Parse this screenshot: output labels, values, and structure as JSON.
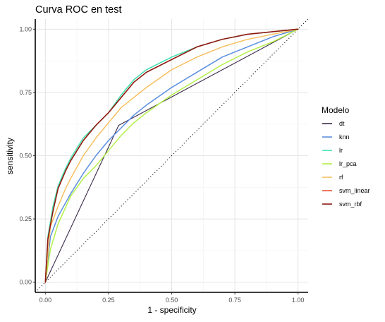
{
  "chart_data": {
    "type": "line",
    "title": "Curva ROC en test",
    "xlabel": "1 - specificity",
    "ylabel": "sensitivity",
    "xlim": [
      -0.04,
      1.04
    ],
    "ylim": [
      -0.04,
      1.04
    ],
    "x_ticks": [
      "0.00",
      "0.25",
      "0.50",
      "0.75",
      "1.00"
    ],
    "y_ticks": [
      "0.00",
      "0.25",
      "0.50",
      "0.75",
      "1.00"
    ],
    "grid": true,
    "legend": {
      "title": "Modelo",
      "placement": "right"
    },
    "reference_line": {
      "style": "dotted",
      "x": [
        0,
        1
      ],
      "y": [
        0,
        1
      ],
      "color": "#000000"
    },
    "series": [
      {
        "name": "dt",
        "color": "#3b2a4a",
        "x": [
          0,
          0.29,
          1
        ],
        "y": [
          0,
          0.62,
          1
        ]
      },
      {
        "name": "knn",
        "color": "#5b8fe0",
        "x": [
          0,
          0.02,
          0.05,
          0.1,
          0.15,
          0.2,
          0.25,
          0.3,
          0.35,
          0.4,
          0.5,
          0.6,
          0.7,
          0.8,
          0.9,
          1.0
        ],
        "y": [
          0,
          0.18,
          0.26,
          0.35,
          0.43,
          0.5,
          0.56,
          0.61,
          0.66,
          0.7,
          0.77,
          0.83,
          0.89,
          0.93,
          0.97,
          1.0
        ]
      },
      {
        "name": "lr",
        "color": "#3fe0b0",
        "x": [
          0,
          0.01,
          0.03,
          0.05,
          0.08,
          0.1,
          0.15,
          0.2,
          0.25,
          0.3,
          0.35,
          0.4,
          0.5,
          0.6,
          0.7,
          0.8,
          0.9,
          1.0
        ],
        "y": [
          0,
          0.18,
          0.3,
          0.38,
          0.45,
          0.49,
          0.57,
          0.62,
          0.67,
          0.74,
          0.8,
          0.84,
          0.89,
          0.93,
          0.96,
          0.98,
          0.99,
          1.0
        ]
      },
      {
        "name": "lr_pca",
        "color": "#b2f048",
        "x": [
          0,
          0.02,
          0.05,
          0.1,
          0.15,
          0.2,
          0.25,
          0.3,
          0.35,
          0.4,
          0.5,
          0.6,
          0.7,
          0.8,
          0.9,
          1.0
        ],
        "y": [
          0,
          0.13,
          0.23,
          0.34,
          0.41,
          0.46,
          0.52,
          0.58,
          0.63,
          0.67,
          0.74,
          0.8,
          0.86,
          0.91,
          0.95,
          1.0
        ]
      },
      {
        "name": "rf",
        "color": "#f5c060",
        "x": [
          0,
          0.02,
          0.05,
          0.08,
          0.1,
          0.15,
          0.2,
          0.25,
          0.3,
          0.35,
          0.4,
          0.5,
          0.6,
          0.7,
          0.8,
          0.9,
          1.0
        ],
        "y": [
          0,
          0.22,
          0.3,
          0.37,
          0.41,
          0.5,
          0.57,
          0.63,
          0.69,
          0.73,
          0.77,
          0.84,
          0.89,
          0.93,
          0.96,
          0.98,
          1.0
        ]
      },
      {
        "name": "svm_linear",
        "color": "#e8573a",
        "x": [
          0,
          0.01,
          0.03,
          0.05,
          0.08,
          0.1,
          0.15,
          0.2,
          0.25,
          0.3,
          0.35,
          0.4,
          0.5,
          0.6,
          0.7,
          0.8,
          0.9,
          1.0
        ],
        "y": [
          0,
          0.17,
          0.28,
          0.37,
          0.44,
          0.48,
          0.56,
          0.62,
          0.67,
          0.73,
          0.79,
          0.83,
          0.88,
          0.93,
          0.96,
          0.98,
          0.99,
          1.0
        ]
      },
      {
        "name": "svm_rbf",
        "color": "#8b1a12",
        "x": [
          0,
          0.01,
          0.03,
          0.05,
          0.08,
          0.1,
          0.15,
          0.2,
          0.25,
          0.3,
          0.35,
          0.4,
          0.5,
          0.6,
          0.7,
          0.8,
          0.9,
          1.0
        ],
        "y": [
          0,
          0.17,
          0.28,
          0.37,
          0.44,
          0.48,
          0.56,
          0.62,
          0.67,
          0.73,
          0.79,
          0.83,
          0.88,
          0.93,
          0.96,
          0.98,
          0.99,
          1.0
        ]
      }
    ]
  }
}
